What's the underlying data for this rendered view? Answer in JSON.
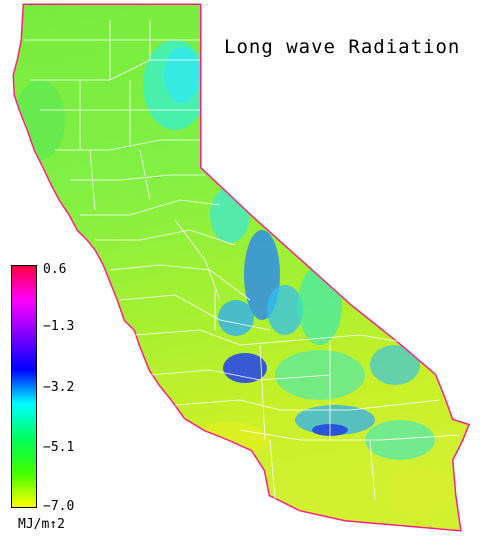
{
  "title": "Long wave Radiation",
  "legend": {
    "unit": "MJ/m↑2",
    "ticks": [
      "0.6",
      "−1.3",
      "−3.2",
      "−5.1",
      "−7.0"
    ],
    "colors": [
      "#ff0040",
      "#ff00ff",
      "#8000ff",
      "#0000ff",
      "#00ffff",
      "#00ff60",
      "#40ff00",
      "#ffff00"
    ]
  },
  "region": "California",
  "colors": {
    "land_base": "#7cf04a",
    "coast_fringe": "#ff2080",
    "county_lines": "#ffffff"
  }
}
